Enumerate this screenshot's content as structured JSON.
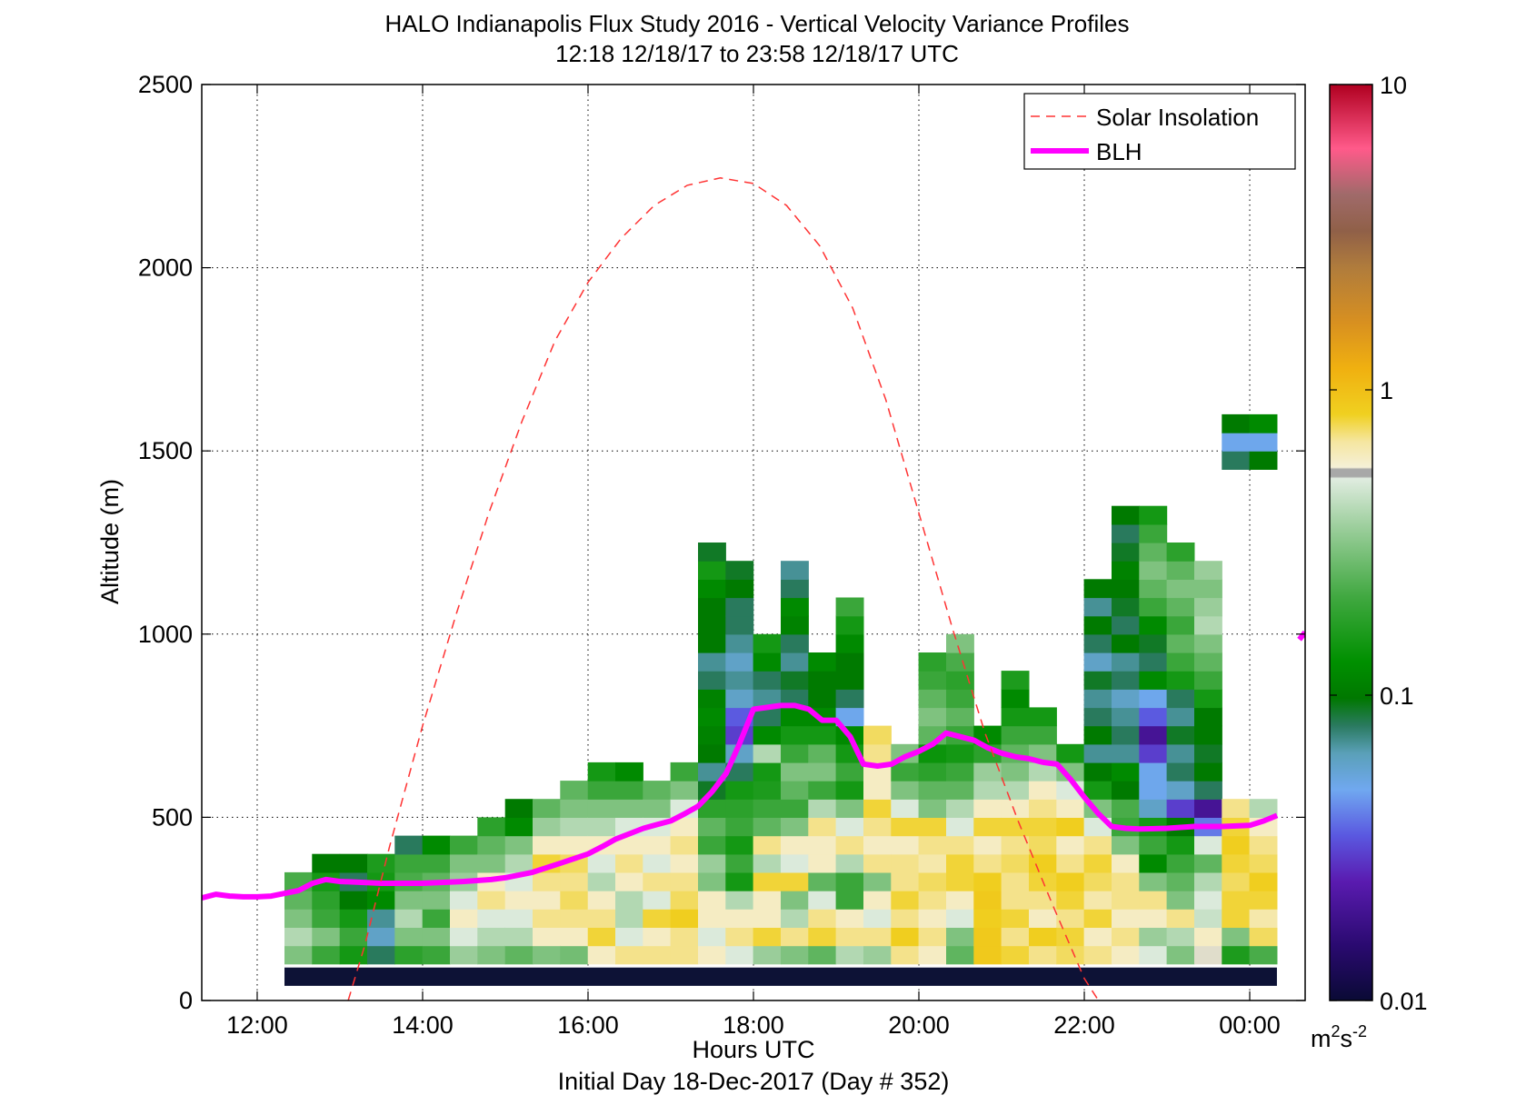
{
  "chart_data": {
    "type": "heatmap",
    "title": "HALO Indianapolis Flux Study 2016 - Vertical Velocity Variance Profiles",
    "subtitle": "12:18 12/18/17 to 23:58 12/18/17  UTC",
    "xlabel": "Hours UTC",
    "xlabel2": "Initial Day 18-Dec-2017 (Day # 352)",
    "ylabel": "Altitude (m)",
    "x_range_hours": [
      11.33,
      24.67
    ],
    "y_range_m": [
      0,
      2500
    ],
    "grid": true,
    "x_ticks": [
      {
        "value": 12,
        "label": "12:00"
      },
      {
        "value": 14,
        "label": "14:00"
      },
      {
        "value": 16,
        "label": "16:00"
      },
      {
        "value": 18,
        "label": "18:00"
      },
      {
        "value": 20,
        "label": "20:00"
      },
      {
        "value": 22,
        "label": "22:00"
      },
      {
        "value": 24,
        "label": "00:00"
      }
    ],
    "y_ticks": [
      {
        "value": 0,
        "label": "0"
      },
      {
        "value": 500,
        "label": "500"
      },
      {
        "value": 1000,
        "label": "1000"
      },
      {
        "value": 1500,
        "label": "1500"
      },
      {
        "value": 2000,
        "label": "2000"
      },
      {
        "value": 2500,
        "label": "2500"
      }
    ],
    "colorbar": {
      "scale": "log",
      "range": [
        0.01,
        10
      ],
      "ticks": [
        {
          "value": 0.01,
          "label": "0.01"
        },
        {
          "value": 0.1,
          "label": "0.1"
        },
        {
          "value": 1,
          "label": "1"
        },
        {
          "value": 10,
          "label": "10"
        }
      ],
      "units_base": "m",
      "units_exp1": "2",
      "units_mid": "s",
      "units_exp2": "-2"
    },
    "legend": {
      "placement": "top-right",
      "entries": [
        {
          "name": "Solar Insolation",
          "style": "dashed",
          "color": "#ff3333"
        },
        {
          "name": "BLH",
          "style": "solid",
          "color": "#ff00ff"
        }
      ]
    },
    "heatmap": {
      "time_start_hour": 12.33,
      "time_step_hour": 0.3333,
      "alt_start_m": 50,
      "alt_step_m": 50,
      "value_units": "m2 s-2",
      "columns": [
        [
          null,
          0.3,
          0.4,
          0.3,
          0.25,
          0.22
        ],
        [
          null,
          0.2,
          0.3,
          0.2,
          0.18,
          0.15,
          0.1
        ],
        [
          null,
          0.15,
          0.2,
          0.15,
          0.1,
          0.08,
          0.1
        ],
        [
          null,
          0.08,
          0.06,
          0.07,
          0.12,
          0.15,
          0.16
        ],
        [
          null,
          0.18,
          0.3,
          0.4,
          0.3,
          0.22,
          0.2,
          0.08
        ],
        [
          null,
          0.2,
          0.3,
          0.2,
          0.3,
          0.25,
          0.2,
          0.12
        ],
        [
          null,
          0.35,
          0.5,
          0.6,
          0.5,
          0.35,
          0.3,
          0.2
        ],
        [
          null,
          0.3,
          0.4,
          0.5,
          0.7,
          0.6,
          0.3,
          0.25,
          0.18
        ],
        [
          null,
          0.25,
          0.4,
          0.5,
          0.6,
          0.5,
          0.4,
          0.3,
          0.12,
          0.1
        ],
        [
          null,
          0.3,
          0.6,
          0.7,
          0.6,
          0.7,
          0.8,
          0.6,
          0.35,
          0.25
        ],
        [
          null,
          0.28,
          0.6,
          0.7,
          0.75,
          0.7,
          0.75,
          0.6,
          0.4,
          0.3,
          0.25
        ],
        [
          null,
          0.6,
          0.8,
          0.7,
          0.6,
          0.4,
          0.5,
          0.6,
          0.4,
          0.3,
          0.2,
          0.15
        ],
        [
          null,
          0.7,
          0.5,
          0.4,
          0.4,
          0.6,
          0.7,
          0.6,
          0.5,
          0.3,
          0.2,
          0.12
        ],
        [
          null,
          0.7,
          0.6,
          0.8,
          0.5,
          0.7,
          0.5,
          0.6,
          0.5,
          0.3,
          0.25
        ],
        [
          null,
          0.7,
          0.7,
          0.85,
          0.75,
          0.7,
          0.6,
          0.7,
          0.6,
          0.5,
          0.3,
          0.2
        ],
        [
          null,
          0.6,
          0.5,
          0.6,
          0.6,
          0.3,
          0.35,
          0.2,
          0.25,
          0.18,
          0.09,
          0.07,
          0.1,
          0.11,
          0.12,
          0.11,
          0.08,
          0.07,
          0.1,
          0.1,
          0.1,
          0.12,
          0.15,
          0.09
        ],
        [
          null,
          0.5,
          0.7,
          0.6,
          0.4,
          0.15,
          0.2,
          0.15,
          0.2,
          0.18,
          0.15,
          0.08,
          0.06,
          0.03,
          0.035,
          0.06,
          0.07,
          0.06,
          0.07,
          0.08,
          0.08,
          0.1,
          0.09
        ],
        [
          null,
          0.35,
          0.8,
          0.6,
          0.6,
          0.8,
          0.4,
          0.7,
          0.25,
          0.2,
          0.16,
          0.15,
          0.4,
          0.12,
          0.08,
          0.07,
          0.08,
          0.12,
          0.15
        ],
        [
          null,
          0.3,
          0.7,
          0.4,
          0.3,
          0.8,
          0.5,
          0.6,
          0.3,
          0.2,
          0.25,
          0.3,
          0.2,
          0.15,
          0.12,
          0.08,
          0.09,
          0.07,
          0.08,
          0.11,
          0.12,
          0.08,
          0.07
        ],
        [
          null,
          0.25,
          0.8,
          0.7,
          0.5,
          0.25,
          0.6,
          0.6,
          0.7,
          0.4,
          0.2,
          0.3,
          0.25,
          0.15,
          0.12,
          0.1,
          0.1,
          0.12
        ],
        [
          null,
          0.4,
          0.7,
          0.6,
          0.2,
          0.2,
          0.4,
          0.7,
          0.5,
          0.3,
          0.15,
          0.2,
          0.15,
          0.12,
          0.05,
          0.08,
          0.1,
          0.1,
          0.12,
          0.15,
          0.2
        ],
        [
          null,
          0.35,
          0.7,
          0.5,
          0.6,
          0.3,
          0.7,
          0.6,
          0.7,
          0.8,
          0.6,
          0.6,
          0.7,
          0.75
        ],
        [
          null,
          0.7,
          0.85,
          0.7,
          0.8,
          0.7,
          0.7,
          0.6,
          0.8,
          0.5,
          0.3,
          0.2,
          0.3
        ],
        [
          null,
          0.6,
          0.7,
          0.6,
          0.7,
          0.75,
          0.65,
          0.7,
          0.8,
          0.3,
          0.25,
          0.18,
          0.14,
          0.25,
          0.3,
          0.25,
          0.2,
          0.18
        ],
        [
          null,
          0.25,
          0.3,
          0.5,
          0.6,
          0.8,
          0.8,
          0.7,
          0.5,
          0.4,
          0.25,
          0.2,
          0.15,
          0.2,
          0.25,
          0.2,
          0.18,
          0.22,
          0.3
        ],
        [
          null,
          0.9,
          0.9,
          0.85,
          0.9,
          0.85,
          0.7,
          0.6,
          0.8,
          0.6,
          0.4,
          0.35,
          0.18,
          0.12
        ],
        [
          null,
          0.8,
          0.7,
          0.8,
          0.7,
          0.7,
          0.75,
          0.7,
          0.8,
          0.6,
          0.4,
          0.3,
          0.25,
          0.2,
          0.15,
          0.12,
          0.16
        ],
        [
          null,
          0.7,
          0.85,
          0.6,
          0.7,
          0.8,
          0.85,
          0.75,
          0.8,
          0.7,
          0.6,
          0.4,
          0.3,
          0.2,
          0.15
        ],
        [
          null,
          0.75,
          0.8,
          0.7,
          0.8,
          0.85,
          0.7,
          0.6,
          0.85,
          0.6,
          0.5,
          0.3,
          0.15
        ],
        [
          null,
          0.7,
          0.6,
          0.8,
          0.65,
          0.75,
          0.8,
          0.7,
          0.5,
          0.3,
          0.15,
          0.1,
          0.07,
          0.1,
          0.08,
          0.07,
          0.09,
          0.06,
          0.08,
          0.1,
          0.07,
          0.1
        ],
        [
          null,
          0.6,
          0.7,
          0.6,
          0.7,
          0.7,
          0.6,
          0.3,
          0.2,
          0.22,
          0.1,
          0.12,
          0.07,
          0.08,
          0.07,
          0.06,
          0.08,
          0.07,
          0.1,
          0.08,
          0.09,
          0.1,
          0.11,
          0.09,
          0.08,
          0.1
        ],
        [
          null,
          0.5,
          0.35,
          0.6,
          0.7,
          0.3,
          0.12,
          0.2,
          0.15,
          0.06,
          0.05,
          0.05,
          0.03,
          0.02,
          0.035,
          0.05,
          0.12,
          0.08,
          0.09,
          0.12,
          0.2,
          0.25,
          0.3,
          0.25,
          0.2,
          0.15
        ],
        [
          null,
          0.3,
          0.4,
          0.7,
          0.3,
          0.25,
          0.2,
          0.15,
          0.1,
          0.03,
          0.06,
          0.08,
          0.07,
          0.09,
          0.07,
          0.08,
          0.15,
          0.2,
          0.25,
          0.2,
          0.25,
          0.3,
          0.25,
          0.18
        ],
        [
          null,
          0.55,
          0.6,
          0.45,
          0.5,
          0.4,
          0.25,
          0.5,
          0.04,
          0.02,
          0.08,
          0.1,
          0.09,
          0.1,
          0.1,
          0.15,
          0.2,
          0.25,
          0.3,
          0.4,
          0.35,
          0.3,
          0.35
        ],
        [
          null,
          0.16,
          0.3,
          0.8,
          0.8,
          0.75,
          0.8,
          0.85,
          0.8,
          0.7,
          null,
          null,
          null,
          null,
          null,
          null,
          null,
          null,
          null,
          null,
          null,
          null,
          null,
          null,
          null,
          null,
          null,
          null,
          0.08,
          0.05,
          0.1
        ],
        [
          null,
          0.22,
          0.75,
          0.65,
          0.8,
          0.85,
          0.75,
          0.7,
          0.6,
          0.4,
          null,
          null,
          null,
          null,
          null,
          null,
          null,
          null,
          null,
          null,
          null,
          null,
          null,
          null,
          null,
          null,
          null,
          null,
          0.1,
          0.05,
          0.12
        ]
      ]
    },
    "floor_bar": {
      "alt_m": [
        40,
        90
      ],
      "color": "#0d1236"
    },
    "series": [
      {
        "name": "BLH",
        "x": [
          11.33,
          11.5,
          11.67,
          11.83,
          12.0,
          12.17,
          12.5,
          12.67,
          12.83,
          13.0,
          13.5,
          14.0,
          14.5,
          14.83,
          15.0,
          15.33,
          15.67,
          16.0,
          16.17,
          16.33,
          16.67,
          16.83,
          17.0,
          17.17,
          17.33,
          17.5,
          17.67,
          17.83,
          18.0,
          18.33,
          18.5,
          18.67,
          18.83,
          19.0,
          19.17,
          19.33,
          19.5,
          19.67,
          19.83,
          20.0,
          20.17,
          20.33,
          20.5,
          20.67,
          20.83,
          21.0,
          21.17,
          21.33,
          21.5,
          21.67,
          21.83,
          22.0,
          22.17,
          22.33,
          22.5,
          22.67,
          23.0,
          23.33,
          23.67,
          24.0,
          24.17,
          24.33
        ],
        "y": [
          280,
          290,
          285,
          283,
          283,
          285,
          300,
          320,
          330,
          325,
          320,
          320,
          325,
          330,
          335,
          350,
          375,
          400,
          420,
          440,
          470,
          480,
          490,
          510,
          530,
          570,
          620,
          700,
          795,
          805,
          805,
          795,
          765,
          765,
          720,
          645,
          640,
          645,
          665,
          680,
          700,
          730,
          720,
          710,
          690,
          675,
          665,
          660,
          650,
          645,
          605,
          555,
          510,
          475,
          470,
          468,
          470,
          475,
          475,
          478,
          490,
          505
        ]
      },
      {
        "name": "BLH",
        "x": [
          24.6,
          24.67
        ],
        "y": [
          985,
          1005
        ]
      },
      {
        "name": "Solar Insolation",
        "x": [
          13.1,
          13.3,
          13.6,
          14.0,
          14.4,
          14.8,
          15.2,
          15.6,
          16.0,
          16.4,
          16.8,
          17.2,
          17.6,
          18.0,
          18.4,
          18.8,
          19.2,
          19.6,
          20.0,
          20.4,
          20.8,
          21.2,
          21.6,
          22.0,
          22.2
        ],
        "y": [
          0,
          150,
          420,
          750,
          1050,
          1330,
          1580,
          1800,
          1960,
          2080,
          2170,
          2225,
          2245,
          2230,
          2170,
          2060,
          1890,
          1640,
          1330,
          1020,
          730,
          490,
          270,
          60,
          -10
        ]
      }
    ]
  },
  "colors": {
    "blh": "#ff00ff",
    "solar": "#ff3333",
    "grid": "#000000",
    "axes": "#000000"
  }
}
